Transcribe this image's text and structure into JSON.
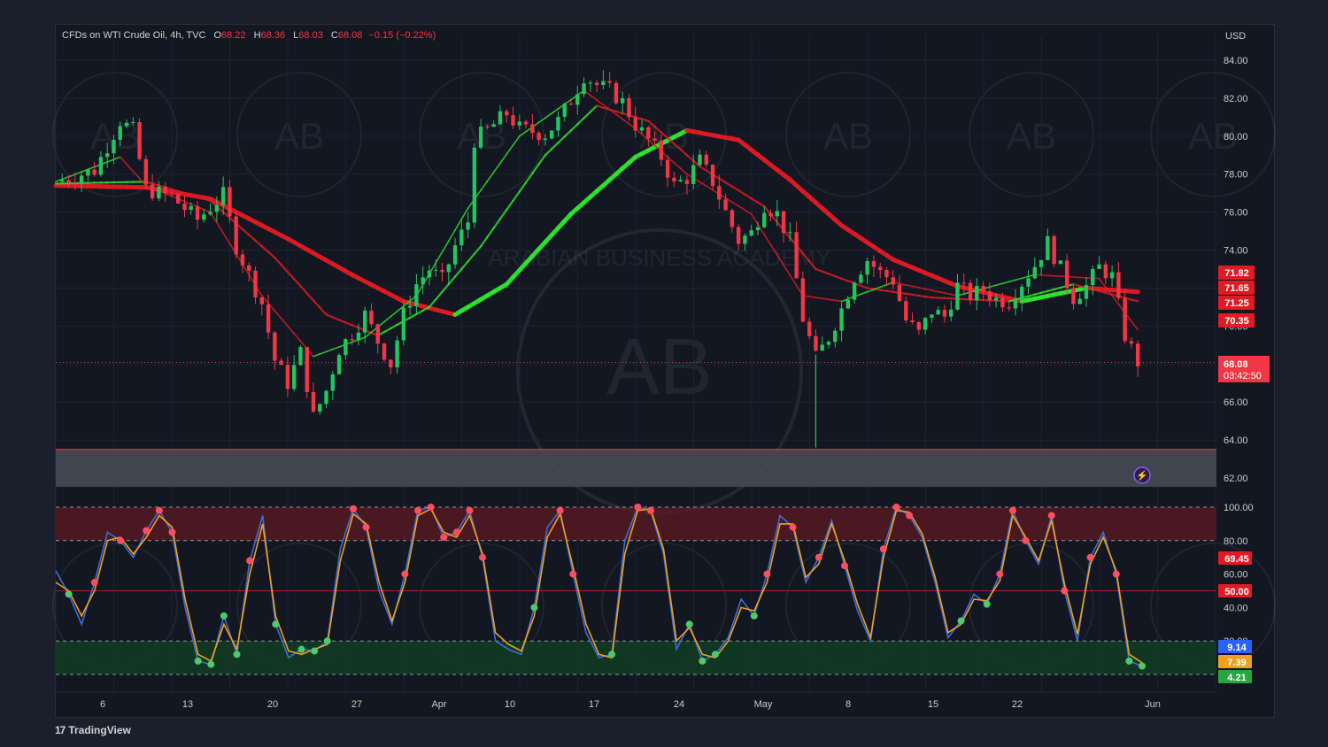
{
  "header": {
    "symbol": "CFDs on WTI Crude Oil, 4h, TVC",
    "open_label": "O",
    "open": "68.22",
    "high_label": "H",
    "high": "68.36",
    "low_label": "L",
    "low": "68.03",
    "close_label": "C",
    "close": "68.08",
    "change": "−0.15 (−0.22%)",
    "currency": "USD"
  },
  "watermark": {
    "text": "ARABIAN BUSINESS ACADEMY",
    "logo": "AB"
  },
  "branding": {
    "name": "TradingView",
    "logo": "17"
  },
  "colors": {
    "up": "#22c55e",
    "down": "#f23645",
    "bull_ma": "#2ee62e",
    "bear_ma": "#e01b24",
    "stoch_k": "#3b6fd6",
    "stoch_d": "#f0a020"
  },
  "chart_data": [
    {
      "type": "candlestick",
      "title": "CFDs on WTI Crude Oil, 4h, TVC",
      "ylabel": "USD",
      "ylim": [
        62,
        85
      ],
      "yticks": [
        "84.00",
        "82.00",
        "80.00",
        "78.00",
        "76.00",
        "74.00",
        "70.00",
        "66.00",
        "64.00",
        "62.00"
      ],
      "xticks": [
        "6",
        "13",
        "20",
        "27",
        "Apr",
        "10",
        "17",
        "24",
        "May",
        "8",
        "15",
        "22",
        "Jun"
      ],
      "last_price": {
        "value": 68.08,
        "label": "68.08",
        "countdown": "03:42:50"
      },
      "price_series": [
        {
          "d": 0,
          "v": 77.6
        },
        {
          "d": 3,
          "v": 78.2
        },
        {
          "d": 5,
          "v": 80.8
        },
        {
          "d": 6,
          "v": 80.3
        },
        {
          "d": 7,
          "v": 77.2
        },
        {
          "d": 9,
          "v": 76.8
        },
        {
          "d": 11,
          "v": 75.6
        },
        {
          "d": 13,
          "v": 76.9
        },
        {
          "d": 14,
          "v": 74.2
        },
        {
          "d": 16,
          "v": 71.2
        },
        {
          "d": 17,
          "v": 68.2
        },
        {
          "d": 18,
          "v": 67.0
        },
        {
          "d": 19,
          "v": 68.6
        },
        {
          "d": 20,
          "v": 65.2
        },
        {
          "d": 21,
          "v": 66.6
        },
        {
          "d": 22,
          "v": 68.8
        },
        {
          "d": 23,
          "v": 69.6
        },
        {
          "d": 24,
          "v": 70.6
        },
        {
          "d": 25,
          "v": 69.2
        },
        {
          "d": 26,
          "v": 68.0
        },
        {
          "d": 27,
          "v": 70.6
        },
        {
          "d": 28,
          "v": 72.2
        },
        {
          "d": 29,
          "v": 73.0
        },
        {
          "d": 30,
          "v": 72.4
        },
        {
          "d": 31,
          "v": 74.2
        },
        {
          "d": 32,
          "v": 75.5
        },
        {
          "d": 32.5,
          "v": 79.8
        },
        {
          "d": 34,
          "v": 80.6
        },
        {
          "d": 35,
          "v": 81.2
        },
        {
          "d": 36,
          "v": 80.4
        },
        {
          "d": 38,
          "v": 80.1
        },
        {
          "d": 39,
          "v": 80.8
        },
        {
          "d": 40,
          "v": 81.9
        },
        {
          "d": 41,
          "v": 83.2
        },
        {
          "d": 42,
          "v": 82.7
        },
        {
          "d": 43,
          "v": 82.4
        },
        {
          "d": 44,
          "v": 81.8
        },
        {
          "d": 45,
          "v": 80.6
        },
        {
          "d": 46,
          "v": 79.8
        },
        {
          "d": 47,
          "v": 78.9
        },
        {
          "d": 48,
          "v": 77.4
        },
        {
          "d": 49,
          "v": 77.8
        },
        {
          "d": 50,
          "v": 78.7
        },
        {
          "d": 51,
          "v": 77.6
        },
        {
          "d": 52,
          "v": 76.0
        },
        {
          "d": 53,
          "v": 74.5
        },
        {
          "d": 54,
          "v": 74.9
        },
        {
          "d": 55,
          "v": 76.4
        },
        {
          "d": 56,
          "v": 75.9
        },
        {
          "d": 57,
          "v": 74.5
        },
        {
          "d": 58,
          "v": 70.4
        },
        {
          "d": 59,
          "v": 68.3
        },
        {
          "d": 60,
          "v": 69.4
        },
        {
          "d": 61,
          "v": 70.9
        },
        {
          "d": 62,
          "v": 72.6
        },
        {
          "d": 63,
          "v": 73.5
        },
        {
          "d": 64,
          "v": 72.8
        },
        {
          "d": 65,
          "v": 72.4
        },
        {
          "d": 66,
          "v": 70.3
        },
        {
          "d": 67,
          "v": 69.6
        },
        {
          "d": 68,
          "v": 70.8
        },
        {
          "d": 69,
          "v": 70.5
        },
        {
          "d": 70,
          "v": 72.1
        },
        {
          "d": 71,
          "v": 71.6
        },
        {
          "d": 72,
          "v": 71.9
        },
        {
          "d": 73,
          "v": 71.4
        },
        {
          "d": 74,
          "v": 71.3
        },
        {
          "d": 75,
          "v": 72.3
        },
        {
          "d": 76,
          "v": 73.2
        },
        {
          "d": 77,
          "v": 74.4
        },
        {
          "d": 78,
          "v": 73.0
        },
        {
          "d": 79,
          "v": 71.5
        },
        {
          "d": 80,
          "v": 72.1
        },
        {
          "d": 81,
          "v": 73.1
        },
        {
          "d": 82,
          "v": 72.6
        },
        {
          "d": 83,
          "v": 69.5
        },
        {
          "d": 84,
          "v": 68.1
        }
      ],
      "moving_averages": [
        {
          "name": "slow",
          "values": [
            {
              "d": 0,
              "v": 77.4
            },
            {
              "d": 7,
              "v": 77.3
            },
            {
              "d": 12,
              "v": 76.7
            },
            {
              "d": 18,
              "v": 74.6
            },
            {
              "d": 23,
              "v": 72.7
            },
            {
              "d": 27,
              "v": 71.3
            },
            {
              "d": 31,
              "v": 70.6
            },
            {
              "d": 35,
              "v": 72.2
            },
            {
              "d": 40,
              "v": 75.9
            },
            {
              "d": 45,
              "v": 78.9
            },
            {
              "d": 49,
              "v": 80.3
            },
            {
              "d": 53,
              "v": 79.8
            },
            {
              "d": 57,
              "v": 77.7
            },
            {
              "d": 61,
              "v": 75.3
            },
            {
              "d": 65,
              "v": 73.5
            },
            {
              "d": 70,
              "v": 72.1
            },
            {
              "d": 75,
              "v": 71.3
            },
            {
              "d": 80,
              "v": 72.0
            },
            {
              "d": 84,
              "v": 71.8
            }
          ]
        },
        {
          "name": "medium",
          "values": [
            {
              "d": 0,
              "v": 77.5
            },
            {
              "d": 7,
              "v": 77.6
            },
            {
              "d": 12,
              "v": 76.6
            },
            {
              "d": 17,
              "v": 73.6
            },
            {
              "d": 21,
              "v": 70.6
            },
            {
              "d": 25,
              "v": 69.5
            },
            {
              "d": 29,
              "v": 71.0
            },
            {
              "d": 33,
              "v": 74.2
            },
            {
              "d": 38,
              "v": 79.0
            },
            {
              "d": 42,
              "v": 81.6
            },
            {
              "d": 46,
              "v": 80.8
            },
            {
              "d": 50,
              "v": 78.4
            },
            {
              "d": 55,
              "v": 76.3
            },
            {
              "d": 59,
              "v": 73.0
            },
            {
              "d": 63,
              "v": 72.0
            },
            {
              "d": 68,
              "v": 71.5
            },
            {
              "d": 74,
              "v": 71.3
            },
            {
              "d": 79,
              "v": 72.2
            },
            {
              "d": 84,
              "v": 71.3
            }
          ]
        },
        {
          "name": "fast",
          "values": [
            {
              "d": 0,
              "v": 77.6
            },
            {
              "d": 5,
              "v": 78.9
            },
            {
              "d": 7,
              "v": 77.4
            },
            {
              "d": 12,
              "v": 76.0
            },
            {
              "d": 16,
              "v": 71.6
            },
            {
              "d": 20,
              "v": 68.4
            },
            {
              "d": 24,
              "v": 69.4
            },
            {
              "d": 28,
              "v": 71.6
            },
            {
              "d": 32,
              "v": 76.2
            },
            {
              "d": 36,
              "v": 80.0
            },
            {
              "d": 41,
              "v": 82.4
            },
            {
              "d": 45,
              "v": 80.4
            },
            {
              "d": 49,
              "v": 78.0
            },
            {
              "d": 54,
              "v": 75.9
            },
            {
              "d": 58,
              "v": 71.6
            },
            {
              "d": 61,
              "v": 71.3
            },
            {
              "d": 65,
              "v": 72.3
            },
            {
              "d": 70,
              "v": 71.6
            },
            {
              "d": 76,
              "v": 72.7
            },
            {
              "d": 81,
              "v": 72.5
            },
            {
              "d": 84,
              "v": 69.8
            }
          ]
        }
      ],
      "price_labels": [
        {
          "value": 71.82,
          "label": "71.82",
          "color": "#e01b24"
        },
        {
          "value": 71.65,
          "label": "71.65",
          "color": "#e01b24"
        },
        {
          "value": 71.25,
          "label": "71.25",
          "color": "#e01b24"
        },
        {
          "value": 70.35,
          "label": "70.35",
          "color": "#e01b24"
        }
      ],
      "zone": {
        "from": 62,
        "to": 63.5
      }
    },
    {
      "type": "line",
      "series": [
        {
          "values": [
            62,
            48,
            30,
            55,
            85,
            80,
            70,
            86,
            98,
            85,
            40,
            8,
            6,
            35,
            12,
            68,
            95,
            30,
            10,
            15,
            14,
            20,
            75,
            99,
            88,
            50,
            30,
            60,
            98,
            100,
            82,
            85,
            98,
            70,
            20,
            15,
            12,
            40,
            88,
            98,
            60,
            25,
            10,
            12,
            80,
            100,
            98,
            72,
            15,
            30,
            8,
            12,
            22,
            45,
            35,
            60,
            95,
            88,
            55,
            70,
            92,
            65,
            38,
            20,
            75,
            100,
            95,
            82,
            55,
            22,
            32,
            48,
            42,
            60,
            98,
            80,
            66,
            95,
            50,
            20,
            70,
            85,
            60,
            8,
            5
          ]
        },
        {
          "values": [
            55,
            50,
            35,
            50,
            80,
            82,
            72,
            82,
            95,
            88,
            45,
            12,
            8,
            30,
            15,
            60,
            90,
            35,
            14,
            12,
            15,
            18,
            68,
            96,
            90,
            55,
            32,
            55,
            95,
            99,
            85,
            82,
            95,
            72,
            25,
            18,
            14,
            35,
            82,
            96,
            64,
            30,
            12,
            10,
            72,
            98,
            99,
            75,
            20,
            28,
            12,
            10,
            20,
            40,
            38,
            55,
            90,
            90,
            58,
            66,
            90,
            68,
            42,
            22,
            70,
            98,
            97,
            84,
            58,
            25,
            30,
            45,
            44,
            56,
            95,
            82,
            68,
            92,
            54,
            24,
            66,
            82,
            62,
            12,
            7
          ]
        }
      ],
      "ylim": [
        0,
        100
      ],
      "yticks": [
        "100.00",
        "80.00",
        "60.00",
        "40.00",
        "20.00"
      ],
      "levels": [
        20,
        50,
        80,
        100
      ],
      "value_labels": [
        {
          "value": 69.45,
          "label": "69.45",
          "color": "#e01b24"
        },
        {
          "value": 50.0,
          "label": "50.00",
          "color": "#e01b24"
        },
        {
          "value": 9.14,
          "label": "9.14",
          "color": "#2962ff"
        },
        {
          "value": 7.39,
          "label": "7.39",
          "color": "#f0a020"
        },
        {
          "value": 4.21,
          "label": "4.21",
          "color": "#26a641"
        }
      ]
    }
  ]
}
